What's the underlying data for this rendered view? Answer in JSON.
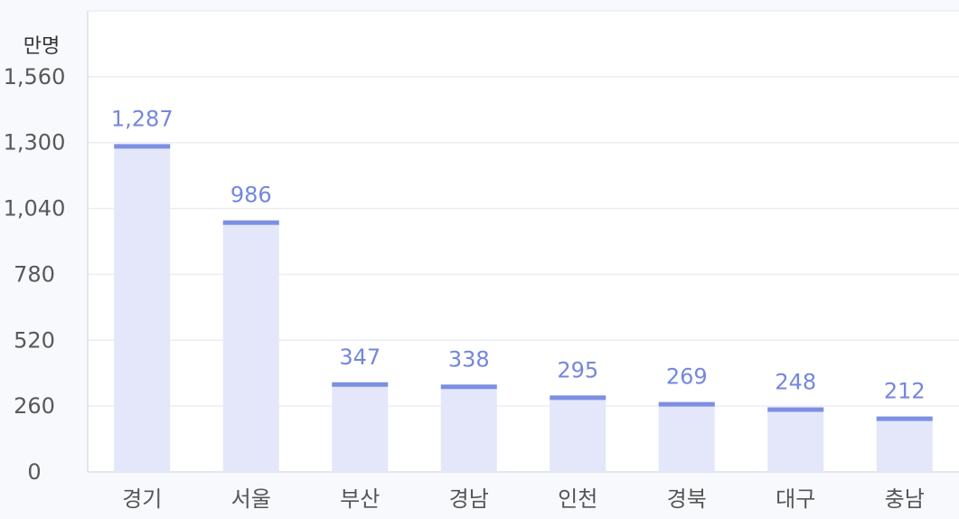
{
  "chart_data": {
    "type": "bar",
    "ylabel": "만명",
    "categories": [
      "경기",
      "서울",
      "부산",
      "경남",
      "인천",
      "경북",
      "대구",
      "충남"
    ],
    "values": [
      1287,
      986,
      347,
      338,
      295,
      269,
      248,
      212
    ],
    "value_labels": [
      "1,287",
      "986",
      "347",
      "338",
      "295",
      "269",
      "248",
      "212"
    ],
    "yticks": [
      0,
      260,
      520,
      780,
      1040,
      1300,
      1560
    ],
    "ytick_labels": [
      "0",
      "260",
      "520",
      "780",
      "1,040",
      "1,300",
      "1,560"
    ],
    "ylim": [
      0,
      1820
    ],
    "grid": true,
    "colors": {
      "bar_fill": "#e3e7f9",
      "bar_top": "#7c8fe2",
      "value_text": "#7487dc",
      "grid": "#ebedf3",
      "axis": "#e2e5ec",
      "background": "#ffffff"
    }
  }
}
